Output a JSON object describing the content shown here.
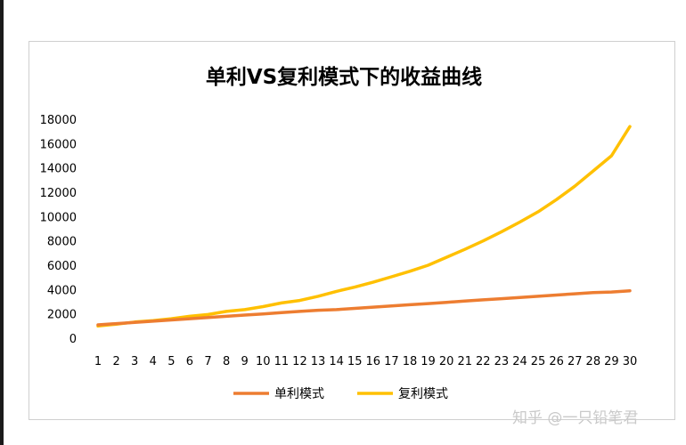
{
  "chart_data": {
    "type": "line",
    "title": "单利VS复利模式下的收益曲线",
    "xlabel": "",
    "ylabel": "",
    "categories": [
      "1",
      "2",
      "3",
      "4",
      "5",
      "6",
      "7",
      "8",
      "9",
      "10",
      "11",
      "12",
      "13",
      "14",
      "15",
      "16",
      "17",
      "18",
      "19",
      "20",
      "21",
      "22",
      "23",
      "24",
      "25",
      "26",
      "27",
      "28",
      "29",
      "30"
    ],
    "ylim": [
      0,
      18000
    ],
    "yticks": [
      "0",
      "2000",
      "4000",
      "6000",
      "8000",
      "10000",
      "12000",
      "14000",
      "16000",
      "18000"
    ],
    "grid": false,
    "legend_position": "bottom",
    "series": [
      {
        "name": "单利模式",
        "color": "#ED7D31",
        "values": [
          1100,
          1200,
          1300,
          1400,
          1500,
          1600,
          1700,
          1800,
          1900,
          2000,
          2100,
          2200,
          2300,
          2350,
          2450,
          2550,
          2650,
          2750,
          2850,
          2950,
          3050,
          3150,
          3250,
          3350,
          3450,
          3550,
          3650,
          3750,
          3800,
          3900
        ]
      },
      {
        "name": "复利模式",
        "color": "#FFC000",
        "values": [
          1000,
          1150,
          1330,
          1450,
          1600,
          1800,
          1950,
          2200,
          2350,
          2600,
          2900,
          3100,
          3450,
          3850,
          4200,
          4600,
          5050,
          5500,
          6000,
          6650,
          7300,
          8000,
          8750,
          9550,
          10400,
          11400,
          12500,
          13750,
          15000,
          17400
        ]
      }
    ]
  },
  "watermark": "知乎 @一只铅笔君"
}
